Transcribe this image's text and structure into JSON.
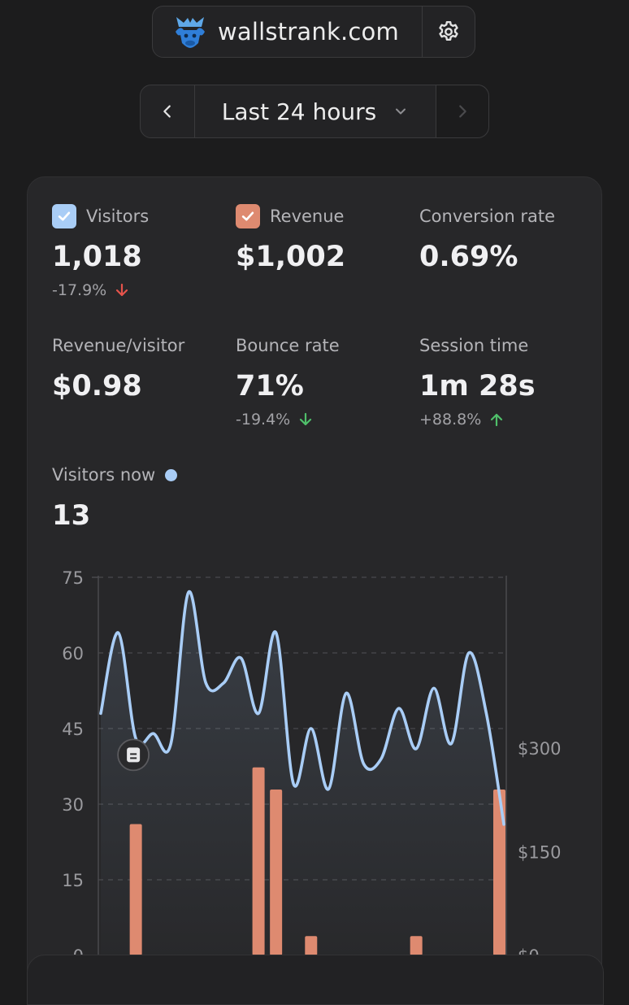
{
  "site": {
    "name": "wallstrank.com"
  },
  "range": {
    "label": "Last 24 hours"
  },
  "metrics": {
    "visitors": {
      "label": "Visitors",
      "value": "1,018",
      "change": "-17.9%"
    },
    "revenue": {
      "label": "Revenue",
      "value": "$1,002"
    },
    "conversion": {
      "label": "Conversion rate",
      "value": "0.69%"
    },
    "rpv": {
      "label": "Revenue/visitor",
      "value": "$0.98"
    },
    "bounce": {
      "label": "Bounce rate",
      "value": "71%",
      "change": "-19.4%"
    },
    "session": {
      "label": "Session time",
      "value": "1m 28s",
      "change": "+88.8%"
    }
  },
  "live": {
    "label": "Visitors now",
    "value": "13"
  },
  "colors": {
    "visitors": "#a9cdf6",
    "revenue": "#de8a70",
    "up": "#4fbf6a",
    "down_bad": "#e5534b",
    "down_good": "#4fbf6a"
  },
  "chart_data": {
    "type": "line",
    "title": "",
    "y_left": {
      "range": [
        0,
        75
      ],
      "ticks": [
        "75",
        "60",
        "45",
        "30",
        "15",
        "0"
      ]
    },
    "y_right": {
      "range": [
        0,
        547
      ],
      "ticks": [
        "$300",
        "$150",
        "$0"
      ]
    },
    "x": [
      0,
      1,
      2,
      3,
      4,
      5,
      6,
      7,
      8,
      9,
      10,
      11,
      12,
      13,
      14,
      15,
      16,
      17,
      18,
      19,
      20,
      21,
      22,
      23
    ],
    "series": [
      {
        "name": "Visitors",
        "axis": "left",
        "values": [
          48,
          64,
          43,
          44,
          42,
          72,
          54,
          54,
          59,
          48,
          64,
          34,
          45,
          33,
          52,
          38,
          39,
          49,
          41,
          53,
          42,
          60,
          48,
          26
        ]
      },
      {
        "name": "Revenue",
        "axis": "right",
        "values": [
          0,
          0,
          190,
          0,
          0,
          0,
          0,
          0,
          0,
          272,
          240,
          0,
          28,
          0,
          0,
          0,
          0,
          0,
          28,
          0,
          0,
          0,
          0,
          240
        ]
      }
    ],
    "annotation": {
      "label": "note-marker",
      "x": 2
    }
  }
}
